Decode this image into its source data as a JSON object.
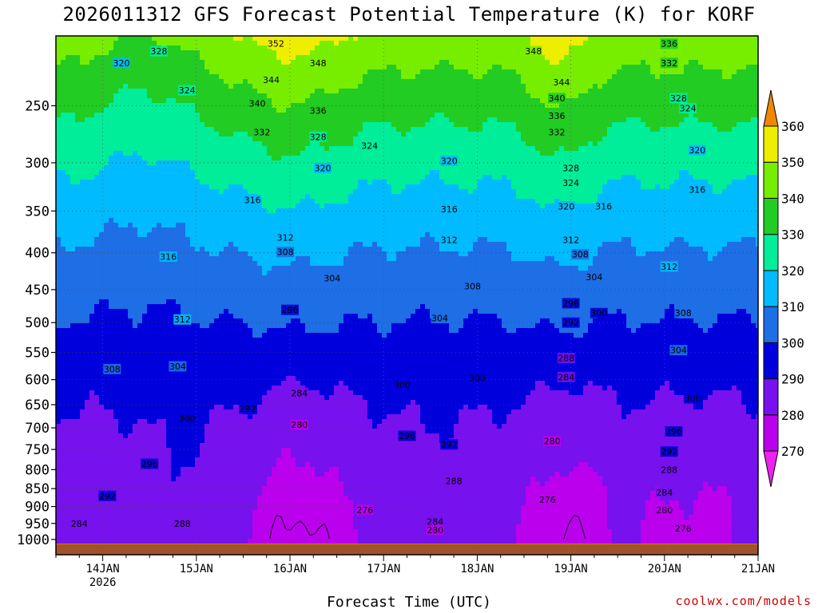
{
  "chart_data": {
    "type": "heatmap",
    "title": "2026011312 GFS Forecast Potential Temperature (K) for KORF",
    "xlabel": "Forecast Time (UTC)",
    "credit": "coolwx.com/models",
    "y_axis": {
      "scale": "log-pressure",
      "inverted": true,
      "range_hpa": [
        1050,
        200
      ],
      "ticks": [
        250,
        300,
        350,
        400,
        450,
        500,
        550,
        600,
        650,
        700,
        750,
        800,
        850,
        900,
        950,
        1000
      ]
    },
    "x_axis": {
      "range_days": [
        "13JAN 12Z",
        "21JAN 00Z"
      ],
      "ticks": [
        {
          "day": 14,
          "label": "14JAN",
          "sublabel": "2026"
        },
        {
          "day": 15,
          "label": "15JAN",
          "sublabel": ""
        },
        {
          "day": 16,
          "label": "16JAN",
          "sublabel": ""
        },
        {
          "day": 17,
          "label": "17JAN",
          "sublabel": ""
        },
        {
          "day": 18,
          "label": "18JAN",
          "sublabel": ""
        },
        {
          "day": 19,
          "label": "19JAN",
          "sublabel": ""
        },
        {
          "day": 20,
          "label": "20JAN",
          "sublabel": ""
        },
        {
          "day": 21,
          "label": "21JAN",
          "sublabel": ""
        }
      ],
      "grid": true
    },
    "colorbar": {
      "units": "K",
      "levels": [
        260,
        270,
        280,
        290,
        300,
        310,
        320,
        330,
        340,
        350,
        360,
        370
      ],
      "labels": [
        270,
        280,
        290,
        300,
        310,
        320,
        330,
        340,
        350,
        360
      ],
      "colors": [
        "#ee22ee",
        "#bb00ee",
        "#7711ee",
        "#0000dd",
        "#1e6ee6",
        "#00bbff",
        "#00ee99",
        "#22cc22",
        "#77ee00",
        "#eeee00",
        "#eeaa00",
        "#ee8800"
      ],
      "extends": "both"
    },
    "contour_interval_K": 2,
    "contour_labels": [
      {
        "value": 352,
        "day": 15.85,
        "p": 205
      },
      {
        "value": 348,
        "day": 16.3,
        "p": 218
      },
      {
        "value": 344,
        "day": 15.8,
        "p": 230
      },
      {
        "value": 340,
        "day": 15.65,
        "p": 248
      },
      {
        "value": 336,
        "day": 16.3,
        "p": 254
      },
      {
        "value": 332,
        "day": 15.7,
        "p": 272
      },
      {
        "value": 328,
        "day": 16.3,
        "p": 276
      },
      {
        "value": 324,
        "day": 16.85,
        "p": 284
      },
      {
        "value": 320,
        "day": 16.35,
        "p": 305
      },
      {
        "value": 320,
        "day": 17.7,
        "p": 298
      },
      {
        "value": 316,
        "day": 15.6,
        "p": 338
      },
      {
        "value": 316,
        "day": 17.7,
        "p": 348
      },
      {
        "value": 312,
        "day": 15.95,
        "p": 381
      },
      {
        "value": 312,
        "day": 17.7,
        "p": 384
      },
      {
        "value": 308,
        "day": 15.95,
        "p": 399
      },
      {
        "value": 304,
        "day": 16.45,
        "p": 434
      },
      {
        "value": 308,
        "day": 17.95,
        "p": 445
      },
      {
        "value": 304,
        "day": 17.6,
        "p": 493
      },
      {
        "value": 296,
        "day": 16.0,
        "p": 480
      },
      {
        "value": 300,
        "day": 17.2,
        "p": 610
      },
      {
        "value": 300,
        "day": 18.0,
        "p": 597
      },
      {
        "value": 296,
        "day": 17.25,
        "p": 718
      },
      {
        "value": 292,
        "day": 17.7,
        "p": 738
      },
      {
        "value": 292,
        "day": 15.55,
        "p": 658
      },
      {
        "value": 288,
        "day": 17.75,
        "p": 829
      },
      {
        "value": 284,
        "day": 16.1,
        "p": 626
      },
      {
        "value": 280,
        "day": 16.1,
        "p": 693
      },
      {
        "value": 276,
        "day": 16.8,
        "p": 910
      },
      {
        "value": 284,
        "day": 17.55,
        "p": 945
      },
      {
        "value": 280,
        "day": 17.55,
        "p": 970
      },
      {
        "value": 320,
        "day": 14.2,
        "p": 218
      },
      {
        "value": 328,
        "day": 14.6,
        "p": 210
      },
      {
        "value": 324,
        "day": 14.9,
        "p": 238
      },
      {
        "value": 316,
        "day": 14.7,
        "p": 405
      },
      {
        "value": 312,
        "day": 14.85,
        "p": 495
      },
      {
        "value": 308,
        "day": 14.1,
        "p": 580
      },
      {
        "value": 304,
        "day": 14.8,
        "p": 575
      },
      {
        "value": 300,
        "day": 14.9,
        "p": 680
      },
      {
        "value": 296,
        "day": 14.5,
        "p": 785
      },
      {
        "value": 292,
        "day": 14.05,
        "p": 870
      },
      {
        "value": 288,
        "day": 14.85,
        "p": 950
      },
      {
        "value": 284,
        "day": 13.75,
        "p": 950
      },
      {
        "value": 348,
        "day": 18.6,
        "p": 210
      },
      {
        "value": 344,
        "day": 18.9,
        "p": 232
      },
      {
        "value": 340,
        "day": 18.85,
        "p": 244
      },
      {
        "value": 336,
        "day": 18.85,
        "p": 258
      },
      {
        "value": 332,
        "day": 18.85,
        "p": 272
      },
      {
        "value": 328,
        "day": 19.0,
        "p": 305
      },
      {
        "value": 324,
        "day": 19.0,
        "p": 320
      },
      {
        "value": 320,
        "day": 18.95,
        "p": 345
      },
      {
        "value": 316,
        "day": 19.35,
        "p": 345
      },
      {
        "value": 312,
        "day": 19.0,
        "p": 384
      },
      {
        "value": 308,
        "day": 19.1,
        "p": 402
      },
      {
        "value": 304,
        "day": 19.25,
        "p": 432
      },
      {
        "value": 296,
        "day": 19.0,
        "p": 470
      },
      {
        "value": 300,
        "day": 19.3,
        "p": 485
      },
      {
        "value": 292,
        "day": 19.0,
        "p": 500
      },
      {
        "value": 288,
        "day": 18.95,
        "p": 560
      },
      {
        "value": 284,
        "day": 18.95,
        "p": 595
      },
      {
        "value": 280,
        "day": 18.8,
        "p": 730
      },
      {
        "value": 276,
        "day": 18.75,
        "p": 880
      },
      {
        "value": 336,
        "day": 20.05,
        "p": 205
      },
      {
        "value": 332,
        "day": 20.05,
        "p": 218
      },
      {
        "value": 328,
        "day": 20.15,
        "p": 244
      },
      {
        "value": 324,
        "day": 20.25,
        "p": 252
      },
      {
        "value": 320,
        "day": 20.35,
        "p": 288
      },
      {
        "value": 316,
        "day": 20.35,
        "p": 327
      },
      {
        "value": 312,
        "day": 20.05,
        "p": 418
      },
      {
        "value": 308,
        "day": 20.2,
        "p": 485
      },
      {
        "value": 304,
        "day": 20.15,
        "p": 546
      },
      {
        "value": 300,
        "day": 20.3,
        "p": 637
      },
      {
        "value": 296,
        "day": 20.1,
        "p": 708
      },
      {
        "value": 292,
        "day": 20.05,
        "p": 755
      },
      {
        "value": 288,
        "day": 20.05,
        "p": 800
      },
      {
        "value": 284,
        "day": 20.0,
        "p": 860
      },
      {
        "value": 280,
        "day": 20.0,
        "p": 910
      },
      {
        "value": 276,
        "day": 20.2,
        "p": 965
      }
    ],
    "surface_pressure_hpa": 1015,
    "terrain_color": "#a0522d"
  }
}
